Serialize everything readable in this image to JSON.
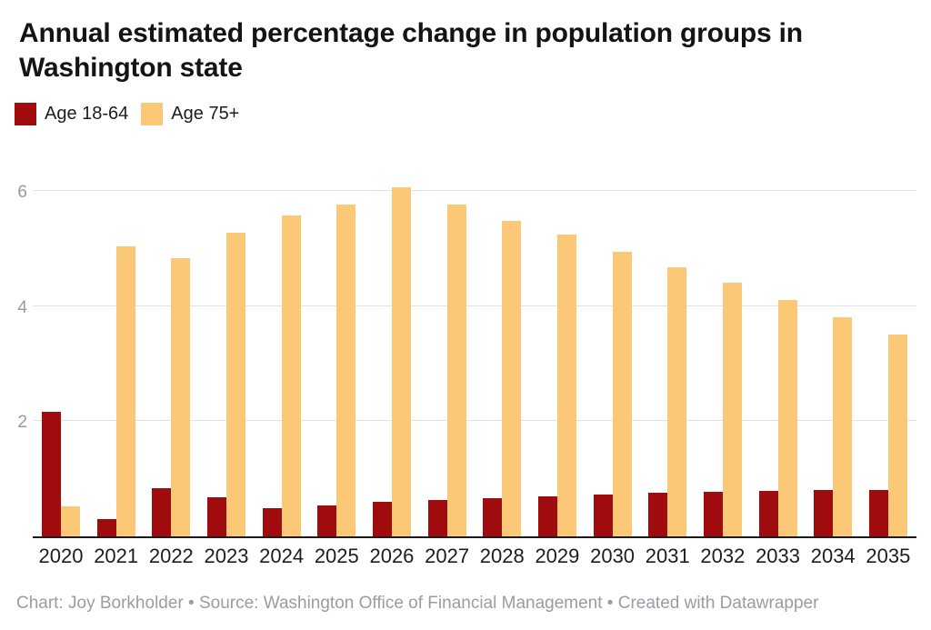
{
  "header": {
    "title": "Annual estimated percentage change in population groups in Washington state"
  },
  "footer": {
    "credit": "Chart: Joy Borkholder • Source: Washington Office of Financial Management • Created with Datawrapper"
  },
  "colors": {
    "age_18_64": "#a00b0e",
    "age_75_plus": "#fac877",
    "gridline": "#e2e2e2",
    "axis_line": "#1a1a1a",
    "tick_text": "#9a9a9a",
    "footer_text": "#989da2"
  },
  "chart_data": {
    "type": "bar",
    "title": "Annual estimated percentage change in population groups in Washington state",
    "categories": [
      "2020",
      "2021",
      "2022",
      "2023",
      "2024",
      "2025",
      "2026",
      "2027",
      "2028",
      "2029",
      "2030",
      "2031",
      "2032",
      "2033",
      "2034",
      "2035"
    ],
    "series": [
      {
        "name": "Age 18-64",
        "color": "#a00b0e",
        "values": [
          2.16,
          0.3,
          0.84,
          0.68,
          0.49,
          0.54,
          0.6,
          0.63,
          0.66,
          0.69,
          0.72,
          0.76,
          0.78,
          0.79,
          0.8,
          0.8
        ]
      },
      {
        "name": "Age 75+",
        "color": "#fac877",
        "values": [
          0.52,
          5.03,
          4.83,
          5.28,
          5.58,
          5.76,
          6.07,
          5.76,
          5.48,
          5.24,
          4.94,
          4.67,
          4.4,
          4.1,
          3.8,
          3.5
        ]
      }
    ],
    "xlabel": "",
    "ylabel": "",
    "ylim": [
      0,
      6.3
    ],
    "yticks": [
      2,
      4,
      6
    ],
    "grid": true,
    "legend_position": "top-left"
  }
}
